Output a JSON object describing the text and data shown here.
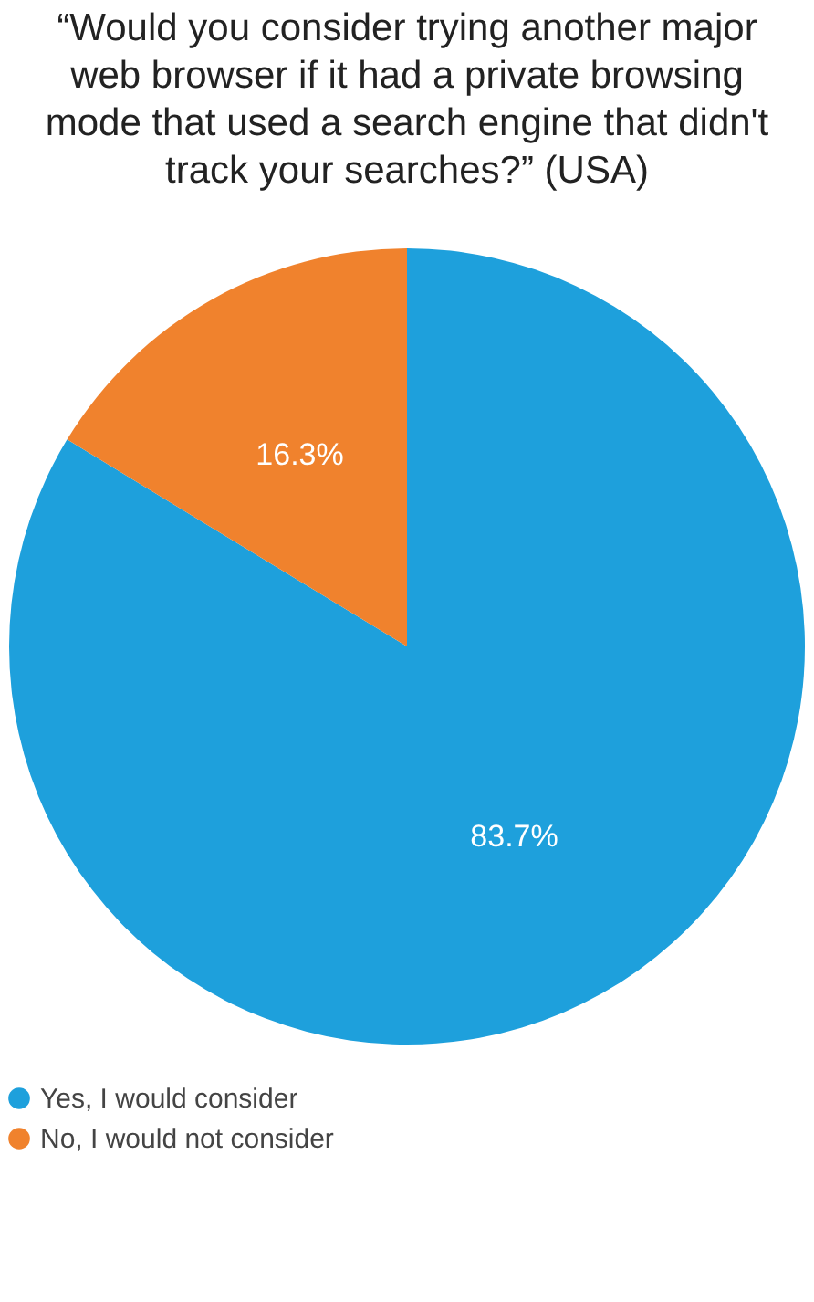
{
  "chart_data": {
    "type": "pie",
    "title": "“Would you consider trying another major web browser if it had a private browsing mode that used a search engine that didn't track your searches?” (USA)",
    "categories": [
      "Yes, I would consider",
      "No, I would not consider"
    ],
    "values": [
      83.7,
      16.3
    ],
    "colors": [
      "#1ea0dc",
      "#f0822d"
    ],
    "value_labels": [
      "83.7%",
      "16.3%"
    ],
    "legend": "bottom"
  }
}
